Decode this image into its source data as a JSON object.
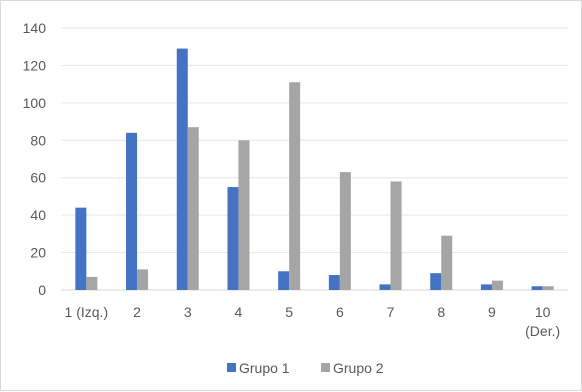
{
  "chart_data": {
    "type": "bar",
    "categories": [
      "1 (Izq.)",
      "2",
      "3",
      "4",
      "5",
      "6",
      "7",
      "8",
      "9",
      "10 (Der.)"
    ],
    "category_lines": [
      [
        "1 (Izq.)"
      ],
      [
        "2"
      ],
      [
        "3"
      ],
      [
        "4"
      ],
      [
        "5"
      ],
      [
        "6"
      ],
      [
        "7"
      ],
      [
        "8"
      ],
      [
        "9"
      ],
      [
        "10",
        "(Der.)"
      ]
    ],
    "series": [
      {
        "name": "Grupo 1",
        "color": "#4472c4",
        "values": [
          44,
          84,
          129,
          55,
          10,
          8,
          3,
          9,
          3,
          2
        ]
      },
      {
        "name": "Grupo 2",
        "color": "#a5a5a5",
        "values": [
          7,
          11,
          87,
          80,
          111,
          63,
          58,
          29,
          5,
          2
        ]
      }
    ],
    "ylim": [
      0,
      140
    ],
    "yticks": [
      0,
      20,
      40,
      60,
      80,
      100,
      120,
      140
    ],
    "grid": true,
    "legend_position": "bottom",
    "title": "",
    "xlabel": "",
    "ylabel": ""
  }
}
